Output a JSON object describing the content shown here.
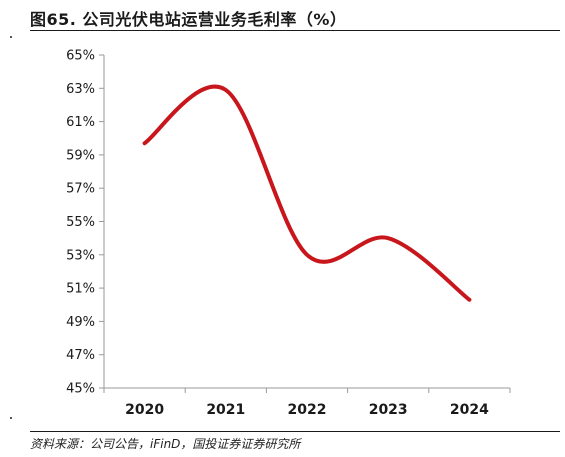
{
  "header": {
    "title": "图65. 公司光伏电站运营业务毛利率（%）"
  },
  "footer": {
    "source": "资料来源：公司公告，iFinD，国投证券证券研究所"
  },
  "chart_data": {
    "type": "line",
    "title": "图65. 公司光伏电站运营业务毛利率（%）",
    "xlabel": "",
    "ylabel": "",
    "categories": [
      "2020",
      "2021",
      "2022",
      "2023",
      "2024"
    ],
    "series": [
      {
        "values": [
          59.7,
          62.9,
          53.0,
          54.0,
          50.3
        ],
        "color": "#c8171c"
      }
    ],
    "ylim": [
      45,
      65
    ],
    "yticks": [
      45,
      47,
      49,
      51,
      53,
      55,
      57,
      59,
      61,
      63,
      65
    ],
    "ytick_labels": [
      "45%",
      "47%",
      "49%",
      "51%",
      "53%",
      "55%",
      "57%",
      "59%",
      "61%",
      "63%",
      "65%"
    ],
    "grid": false,
    "legend": "none",
    "smooth": true
  }
}
